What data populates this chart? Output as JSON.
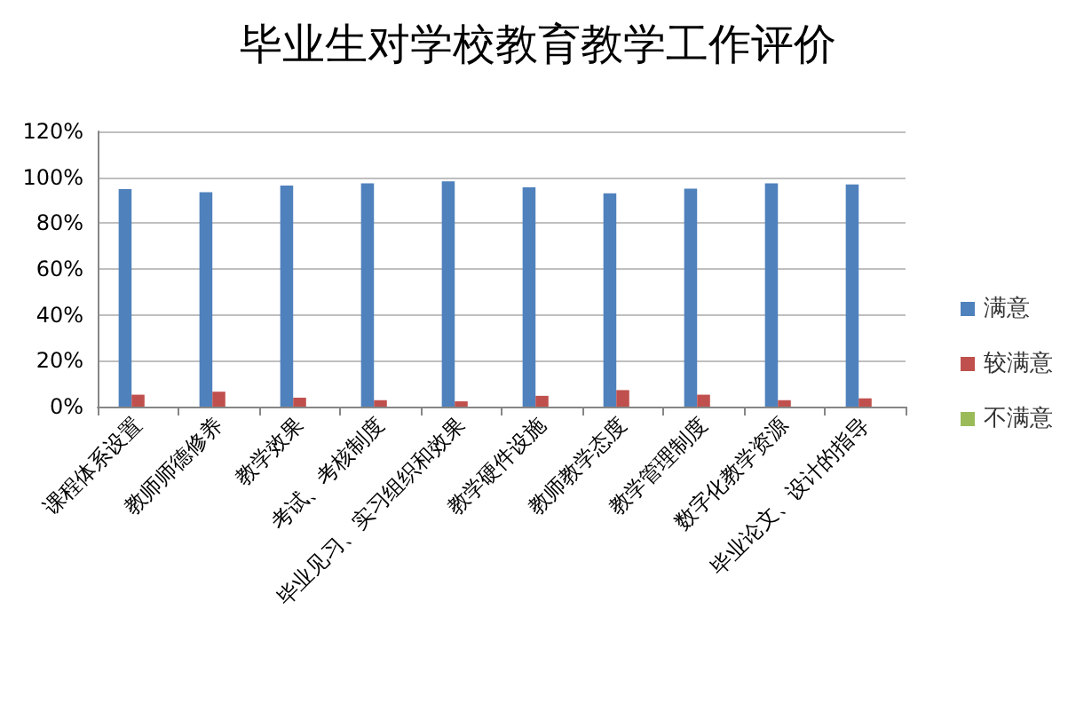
{
  "chart_data": {
    "type": "bar",
    "title": "毕业生对学校教育教学工作评价",
    "categories": [
      "课程体系设置",
      "教师师德修养",
      "教学效果",
      "考试、考核制度",
      "毕业见习、实习组织和效果",
      "教学硬件设施",
      "教师教学态度",
      "教学管理制度",
      "数字化教学资源",
      "毕业论文、设计的指导"
    ],
    "series": [
      {
        "name": "满意",
        "color": "#4f81bd",
        "values": [
          94.8,
          93.5,
          96.4,
          97.4,
          98.2,
          95.6,
          93,
          95,
          97.4,
          96.9
        ]
      },
      {
        "name": "较满意",
        "color": "#c0504d",
        "values": [
          5.2,
          6.5,
          3.9,
          2.8,
          2.3,
          4.7,
          7.2,
          5.2,
          2.8,
          3.6
        ]
      },
      {
        "name": "不满意",
        "color": "#9bbb59",
        "values": [
          0,
          0,
          0,
          0,
          0,
          0,
          0,
          0,
          0,
          0
        ]
      }
    ],
    "ylim": [
      0,
      120
    ],
    "yticks": [
      {
        "value": 0,
        "label": "0%"
      },
      {
        "value": 20,
        "label": "20%"
      },
      {
        "value": 40,
        "label": "40%"
      },
      {
        "value": 60,
        "label": "60%"
      },
      {
        "value": 80,
        "label": "80%"
      },
      {
        "value": 100,
        "label": "100%"
      },
      {
        "value": 120,
        "label": "120%"
      }
    ],
    "grid": "y",
    "legend": "right"
  }
}
